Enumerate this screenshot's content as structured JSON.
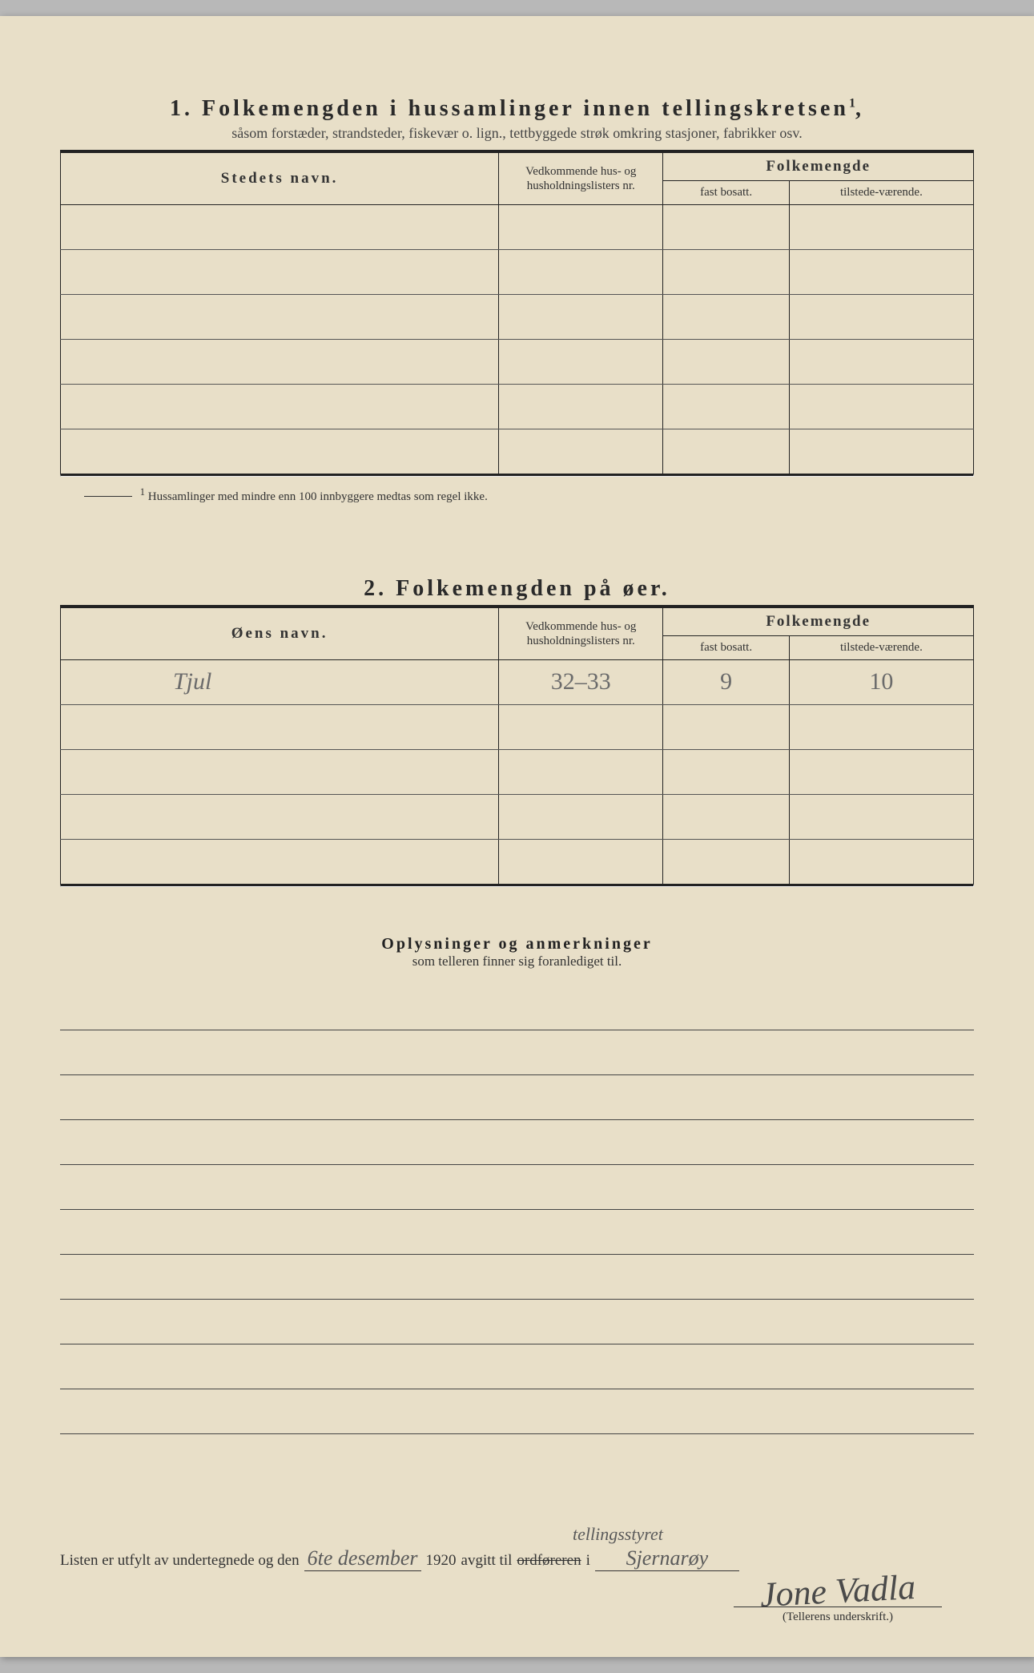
{
  "colors": {
    "paper": "#e8dfc8",
    "ink": "#2a2a2a",
    "handwriting": "#6b6b6b",
    "rule": "#222222"
  },
  "section1": {
    "number": "1.",
    "title": "Folkemengden i hussamlinger innen tellingskretsen",
    "sup": "1",
    "subtitle": "såsom forstæder, strandsteder, fiskevær o. lign., tettbyggede strøk omkring stasjoner, fabrikker osv.",
    "headers": {
      "name": "Stedets navn.",
      "lister": "Vedkommende hus- og husholdningslisters nr.",
      "folk_group": "Folkemengde",
      "fast": "fast bosatt.",
      "tilstede": "tilstede-værende."
    },
    "rows": [
      {
        "name": "",
        "lister": "",
        "fast": "",
        "tilstede": ""
      },
      {
        "name": "",
        "lister": "",
        "fast": "",
        "tilstede": ""
      },
      {
        "name": "",
        "lister": "",
        "fast": "",
        "tilstede": ""
      },
      {
        "name": "",
        "lister": "",
        "fast": "",
        "tilstede": ""
      },
      {
        "name": "",
        "lister": "",
        "fast": "",
        "tilstede": ""
      },
      {
        "name": "",
        "lister": "",
        "fast": "",
        "tilstede": ""
      }
    ],
    "footnote_mark": "1",
    "footnote": "Hussamlinger med mindre enn 100 innbyggere medtas som regel ikke."
  },
  "section2": {
    "number": "2.",
    "title": "Folkemengden på øer.",
    "headers": {
      "name": "Øens navn.",
      "lister": "Vedkommende hus- og husholdningslisters nr.",
      "folk_group": "Folkemengde",
      "fast": "fast bosatt.",
      "tilstede": "tilstede-værende."
    },
    "rows": [
      {
        "name": "Tjul",
        "lister": "32–33",
        "fast": "9",
        "tilstede": "10"
      },
      {
        "name": "",
        "lister": "",
        "fast": "",
        "tilstede": ""
      },
      {
        "name": "",
        "lister": "",
        "fast": "",
        "tilstede": ""
      },
      {
        "name": "",
        "lister": "",
        "fast": "",
        "tilstede": ""
      },
      {
        "name": "",
        "lister": "",
        "fast": "",
        "tilstede": ""
      }
    ]
  },
  "oplysninger": {
    "title": "Oplysninger og anmerkninger",
    "subtitle": "som telleren finner sig foranlediget til.",
    "line_count": 10
  },
  "footer": {
    "prefix": "Listen er utfylt av undertegnede og den",
    "date_hand": "6te desember",
    "year": "1920",
    "mid": "avgitt til",
    "struck": "ordføreren",
    "above": "tellingsstyret",
    "in": "i",
    "place_hand": "Sjernarøy",
    "sig": "Jone Vadla",
    "sig_label": "(Tellerens underskrift.)"
  }
}
